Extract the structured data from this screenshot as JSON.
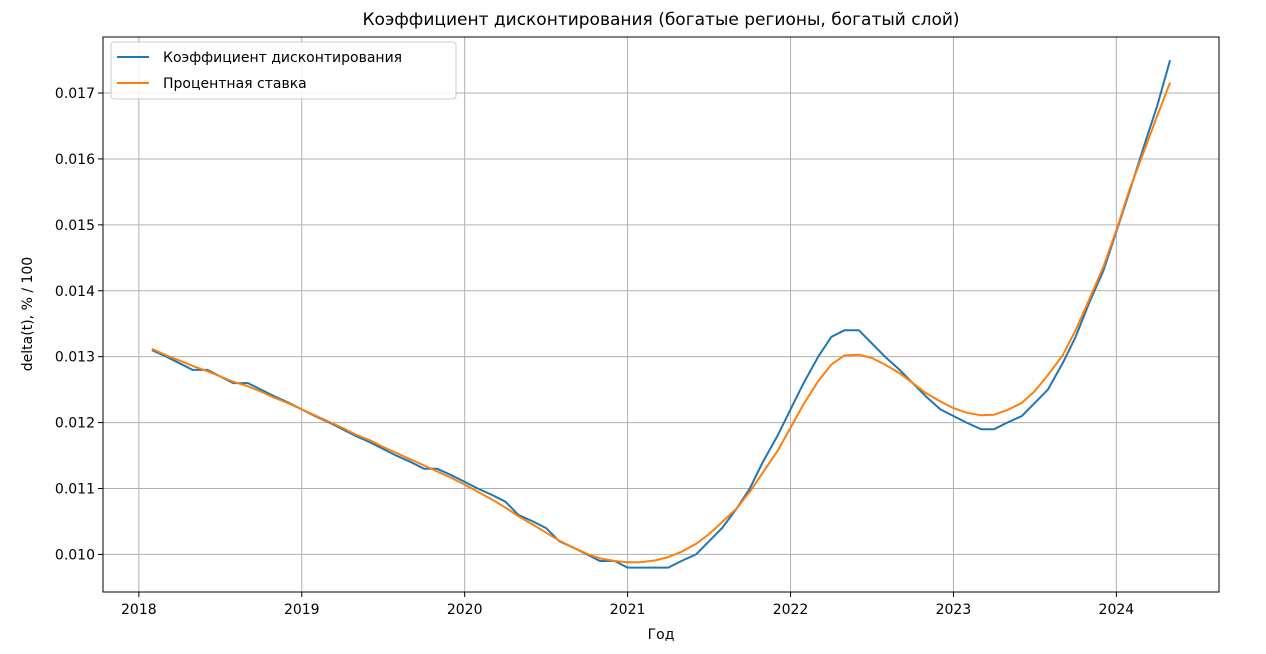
{
  "chart_data": {
    "type": "line",
    "title": "Коэффициент дисконтирования (богатые регионы, богатый слой)",
    "xlabel": "Год",
    "ylabel": "delta(t), % / 100",
    "xlim": [
      2017.78,
      2024.63
    ],
    "ylim": [
      0.00943,
      0.01785
    ],
    "grid": true,
    "legend_position": "top-left",
    "x_ticks": [
      2018,
      2019,
      2020,
      2021,
      2022,
      2023,
      2024
    ],
    "x_tick_labels": [
      "2018",
      "2019",
      "2020",
      "2021",
      "2022",
      "2023",
      "2024"
    ],
    "y_ticks": [
      0.01,
      0.011,
      0.012,
      0.013,
      0.014,
      0.015,
      0.016,
      0.017
    ],
    "y_tick_labels": [
      "0.010",
      "0.011",
      "0.012",
      "0.013",
      "0.014",
      "0.015",
      "0.016",
      "0.017"
    ],
    "series": [
      {
        "name": "Коэффициент дисконтирования",
        "color": "#1f77b4",
        "x": [
          2018.08,
          2018.17,
          2018.25,
          2018.33,
          2018.42,
          2018.5,
          2018.58,
          2018.67,
          2018.75,
          2018.83,
          2018.92,
          2019.0,
          2019.08,
          2019.17,
          2019.25,
          2019.33,
          2019.42,
          2019.5,
          2019.58,
          2019.67,
          2019.75,
          2019.83,
          2019.92,
          2020.0,
          2020.08,
          2020.17,
          2020.25,
          2020.33,
          2020.42,
          2020.5,
          2020.58,
          2020.67,
          2020.75,
          2020.83,
          2020.92,
          2021.0,
          2021.08,
          2021.17,
          2021.25,
          2021.33,
          2021.42,
          2021.5,
          2021.58,
          2021.67,
          2021.75,
          2021.83,
          2021.92,
          2022.0,
          2022.08,
          2022.17,
          2022.25,
          2022.33,
          2022.42,
          2022.5,
          2022.58,
          2022.67,
          2022.75,
          2022.83,
          2022.92,
          2023.0,
          2023.08,
          2023.17,
          2023.25,
          2023.33,
          2023.42,
          2023.5,
          2023.58,
          2023.67,
          2023.75,
          2023.83,
          2023.92,
          2024.0,
          2024.08,
          2024.17,
          2024.25,
          2024.33
        ],
        "y": [
          0.0131,
          0.013,
          0.0129,
          0.0128,
          0.0128,
          0.0127,
          0.0126,
          0.0126,
          0.0125,
          0.0124,
          0.0123,
          0.0122,
          0.0121,
          0.012,
          0.0119,
          0.0118,
          0.0117,
          0.0116,
          0.0115,
          0.0114,
          0.0113,
          0.0113,
          0.0112,
          0.0111,
          0.011,
          0.0109,
          0.0108,
          0.0106,
          0.0105,
          0.0104,
          0.0102,
          0.0101,
          0.01,
          0.0099,
          0.0099,
          0.0098,
          0.0098,
          0.0098,
          0.0098,
          0.0099,
          0.01,
          0.0102,
          0.0104,
          0.0107,
          0.011,
          0.0114,
          0.0118,
          0.0122,
          0.0126,
          0.013,
          0.0133,
          0.0134,
          0.0134,
          0.0132,
          0.013,
          0.0128,
          0.0126,
          0.0124,
          0.0122,
          0.0121,
          0.012,
          0.0119,
          0.0119,
          0.012,
          0.0121,
          0.0123,
          0.0125,
          0.0129,
          0.0133,
          0.0138,
          0.0143,
          0.0149,
          0.0155,
          0.0162,
          0.0168,
          0.0175
        ]
      },
      {
        "name": "Процентная ставка",
        "color": "#ff7f0e",
        "x": [
          2018.08,
          2018.17,
          2018.25,
          2018.33,
          2018.42,
          2018.5,
          2018.58,
          2018.67,
          2018.75,
          2018.83,
          2018.92,
          2019.0,
          2019.08,
          2019.17,
          2019.25,
          2019.33,
          2019.42,
          2019.5,
          2019.58,
          2019.67,
          2019.75,
          2019.83,
          2019.92,
          2020.0,
          2020.08,
          2020.17,
          2020.25,
          2020.33,
          2020.42,
          2020.5,
          2020.58,
          2020.67,
          2020.75,
          2020.83,
          2020.92,
          2021.0,
          2021.08,
          2021.17,
          2021.25,
          2021.33,
          2021.42,
          2021.5,
          2021.58,
          2021.67,
          2021.75,
          2021.83,
          2021.92,
          2022.0,
          2022.08,
          2022.17,
          2022.25,
          2022.33,
          2022.42,
          2022.5,
          2022.58,
          2022.67,
          2022.75,
          2022.83,
          2022.92,
          2023.0,
          2023.08,
          2023.17,
          2023.25,
          2023.33,
          2023.42,
          2023.5,
          2023.58,
          2023.67,
          2023.75,
          2023.83,
          2023.92,
          2024.0,
          2024.08,
          2024.17,
          2024.25,
          2024.33
        ],
        "y": [
          0.01312,
          0.01302,
          0.01294,
          0.01286,
          0.01278,
          0.0127,
          0.01262,
          0.01255,
          0.01247,
          0.01238,
          0.01229,
          0.0122,
          0.01211,
          0.01201,
          0.01192,
          0.01182,
          0.01173,
          0.01163,
          0.01154,
          0.01144,
          0.01135,
          0.01126,
          0.01116,
          0.01106,
          0.01095,
          0.01083,
          0.01071,
          0.01058,
          0.01045,
          0.01033,
          0.01021,
          0.0101,
          0.01001,
          0.00994,
          0.0099,
          0.00988,
          0.00988,
          0.00991,
          0.00996,
          0.01004,
          0.01016,
          0.01031,
          0.01049,
          0.0107,
          0.01095,
          0.01124,
          0.01157,
          0.01192,
          0.01228,
          0.01263,
          0.01288,
          0.01302,
          0.01303,
          0.01298,
          0.01288,
          0.01275,
          0.0126,
          0.01245,
          0.01232,
          0.01222,
          0.01215,
          0.01211,
          0.01212,
          0.01219,
          0.0123,
          0.01248,
          0.01272,
          0.01302,
          0.0134,
          0.01385,
          0.01436,
          0.01492,
          0.01553,
          0.01612,
          0.01665,
          0.01716
        ]
      }
    ]
  }
}
